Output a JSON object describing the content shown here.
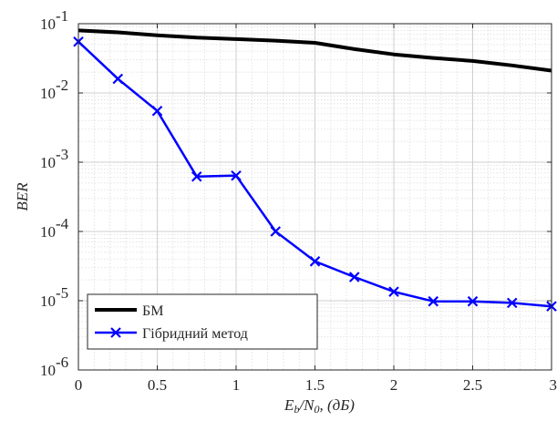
{
  "chart_data": {
    "type": "line",
    "xlabel": "Eb/N0, (дБ)",
    "xlabel_parts": {
      "main": "E",
      "sub_b": "b",
      "slash": "/N",
      "sub_0": "0",
      "unit": ", (дБ)"
    },
    "ylabel": "BER",
    "xlim": [
      0,
      3
    ],
    "ylim": [
      1e-06,
      0.1
    ],
    "yscale": "log",
    "grid": true,
    "minor_grid": true,
    "legend_position": "bottom-left",
    "x_ticks": [
      {
        "value": 0,
        "label": "0"
      },
      {
        "value": 0.5,
        "label": "0.5"
      },
      {
        "value": 1,
        "label": "1"
      },
      {
        "value": 1.5,
        "label": "1.5"
      },
      {
        "value": 2,
        "label": "2"
      },
      {
        "value": 2.5,
        "label": "2.5"
      },
      {
        "value": 3,
        "label": "3"
      }
    ],
    "y_ticks": [
      {
        "exp": -1,
        "base": "10",
        "sup": "-1"
      },
      {
        "exp": -2,
        "base": "10",
        "sup": "-2"
      },
      {
        "exp": -3,
        "base": "10",
        "sup": "-3"
      },
      {
        "exp": -4,
        "base": "10",
        "sup": "-4"
      },
      {
        "exp": -5,
        "base": "10",
        "sup": "-5"
      },
      {
        "exp": -6,
        "base": "10",
        "sup": "-6"
      }
    ],
    "series": [
      {
        "name": "БМ",
        "color": "#000000",
        "marker": "none",
        "x": [
          0,
          0.25,
          0.5,
          0.75,
          1,
          1.25,
          1.5,
          1.75,
          2,
          2.25,
          2.5,
          2.75,
          3
        ],
        "values": [
          0.08,
          0.075,
          0.068,
          0.063,
          0.06,
          0.057,
          0.053,
          0.043,
          0.036,
          0.032,
          0.029,
          0.025,
          0.021
        ]
      },
      {
        "name": "Гібридний метод",
        "color": "#0000ff",
        "marker": "x",
        "x": [
          0,
          0.25,
          0.5,
          0.75,
          1,
          1.25,
          1.5,
          1.75,
          2,
          2.25,
          2.5,
          2.75,
          3
        ],
        "values": [
          0.055,
          0.016,
          0.0055,
          0.00062,
          0.00064,
          0.0001,
          3.7e-05,
          2.2e-05,
          1.35e-05,
          9.8e-06,
          9.8e-06,
          9.3e-06,
          8.3e-06
        ]
      }
    ]
  }
}
